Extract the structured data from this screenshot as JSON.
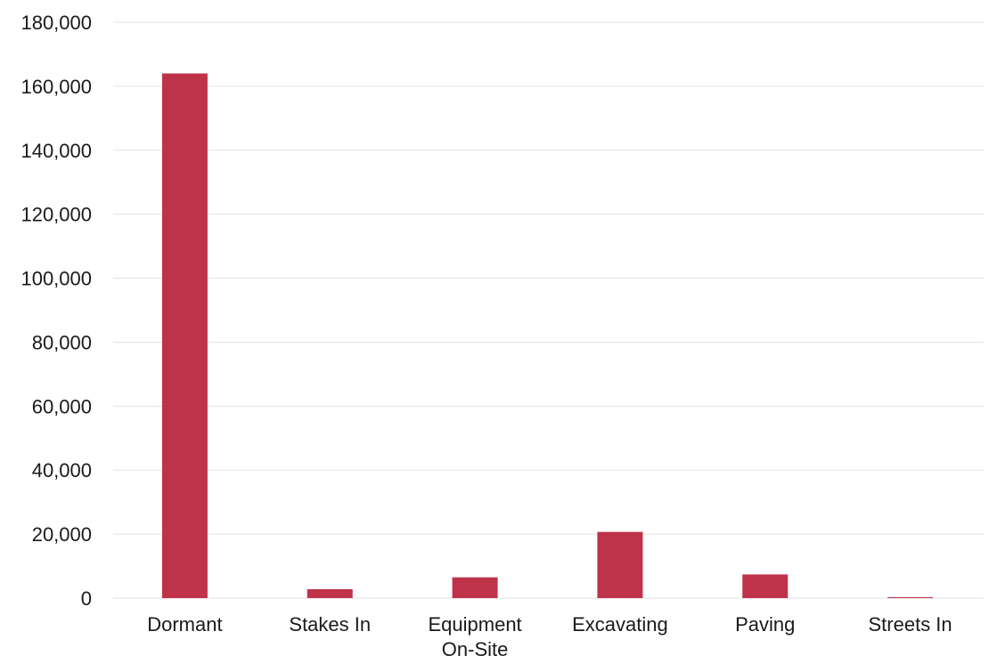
{
  "chart_data": {
    "type": "bar",
    "categories": [
      [
        "Dormant"
      ],
      [
        "Stakes In"
      ],
      [
        "Equipment",
        "On-Site"
      ],
      [
        "Excavating"
      ],
      [
        "Paving"
      ],
      [
        "Streets In"
      ]
    ],
    "values": [
      164000,
      2800,
      6500,
      20700,
      7400,
      300
    ],
    "ylim": [
      0,
      180000
    ],
    "yticks": [
      0,
      20000,
      40000,
      60000,
      80000,
      100000,
      120000,
      140000,
      160000,
      180000
    ],
    "ytick_labels": [
      "0",
      "20,000",
      "40,000",
      "60,000",
      "80,000",
      "100,000",
      "120,000",
      "140,000",
      "160,000",
      "180,000"
    ],
    "grid": true,
    "legend": "none",
    "bar_color": "#be334a",
    "title": "",
    "xlabel": "",
    "ylabel": ""
  }
}
